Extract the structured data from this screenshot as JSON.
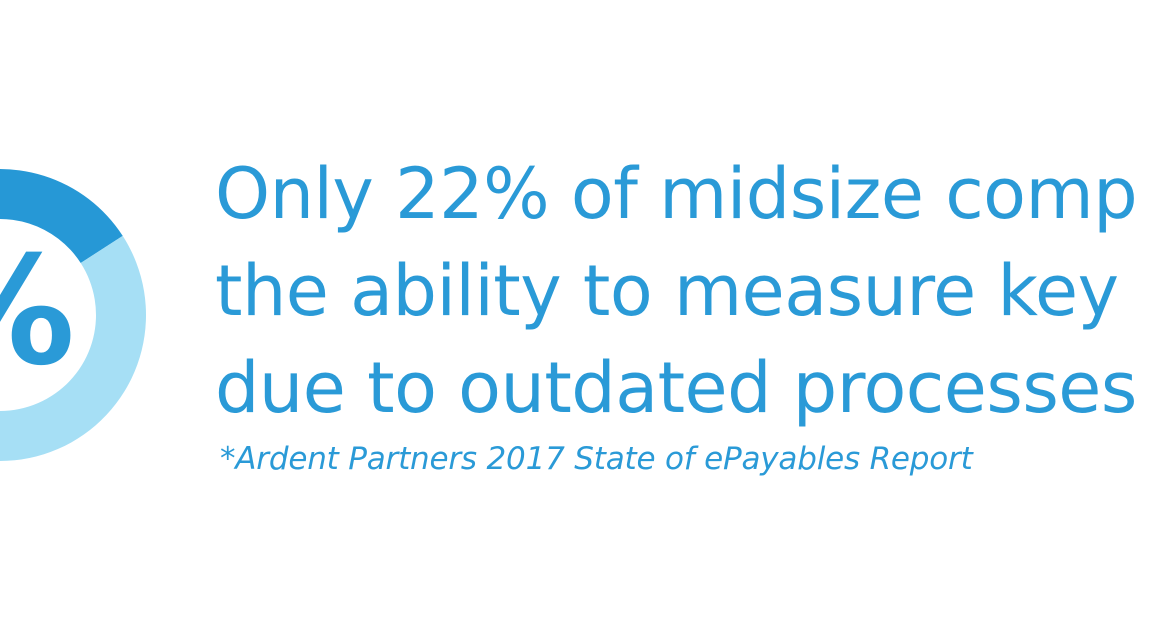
{
  "chart_data": {
    "type": "pie",
    "style": "donut",
    "center_label": "%",
    "slices": [
      {
        "label": "",
        "value": 22,
        "color": "#2698d6"
      },
      {
        "label": "",
        "value": 78,
        "color": "#a6dff5"
      }
    ]
  },
  "headline": {
    "lines": [
      "Only 22% of midsize comp",
      "the ability to measure key ",
      "due to outdated processes"
    ]
  },
  "source": "*Ardent Partners 2017 State of ePayables Report",
  "colors": {
    "text": "#2a9ad7",
    "donut_dark": "#2698d6",
    "donut_light": "#a6dff5"
  }
}
